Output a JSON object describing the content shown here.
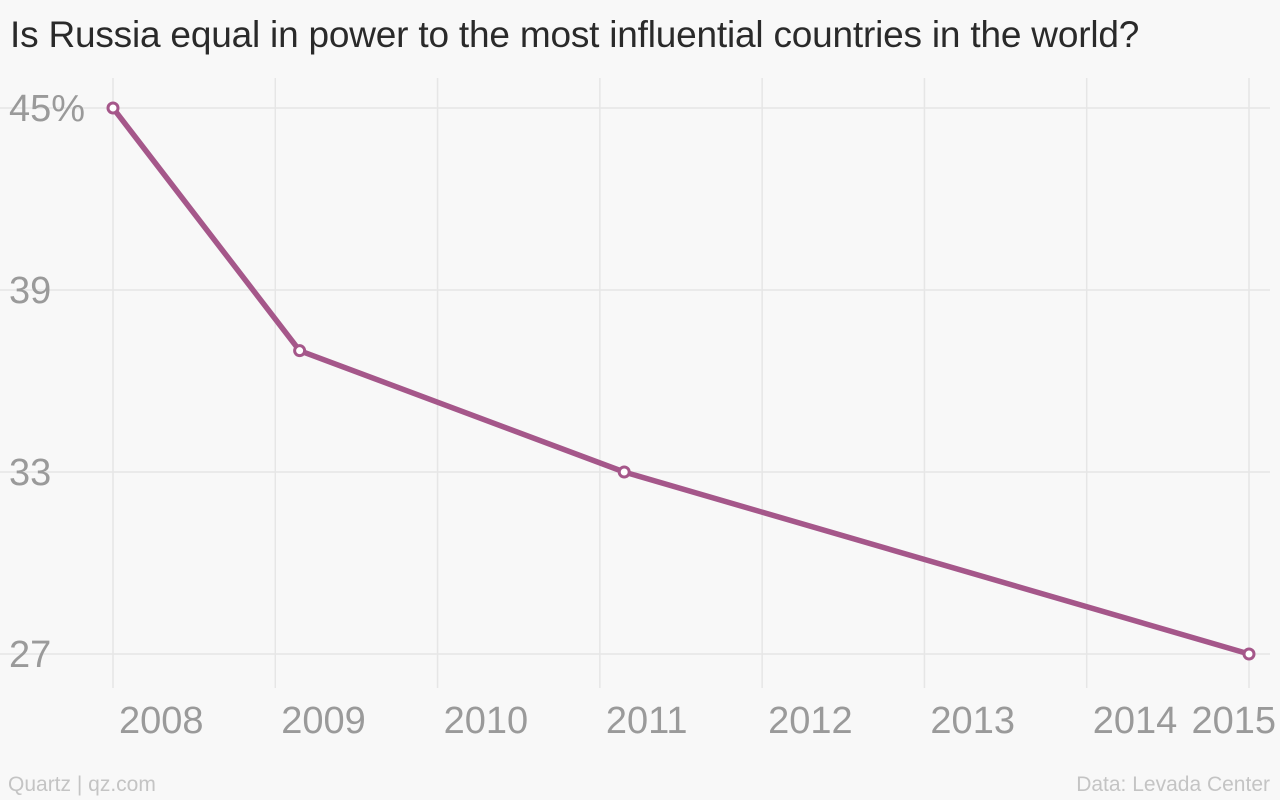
{
  "chart_data": {
    "type": "line",
    "title": "Is Russia equal in power to the most influential countries in the world?",
    "x_ticks": [
      "2008",
      "2009",
      "2010",
      "2011",
      "2012",
      "2013",
      "2014",
      "2015"
    ],
    "y_ticks": [
      "45%",
      "39",
      "33",
      "27"
    ],
    "ylim": [
      27,
      45
    ],
    "xlim": [
      2008,
      2015
    ],
    "grid": true,
    "series": [
      {
        "color": "#a5578a",
        "points": [
          {
            "x": 2008,
            "y": 45
          },
          {
            "x": 2009.15,
            "y": 37
          },
          {
            "x": 2011.15,
            "y": 33
          },
          {
            "x": 2015,
            "y": 27
          }
        ]
      }
    ]
  },
  "footer": {
    "source_left": "Quartz | qz.com",
    "source_right": "Data: Levada Center"
  }
}
